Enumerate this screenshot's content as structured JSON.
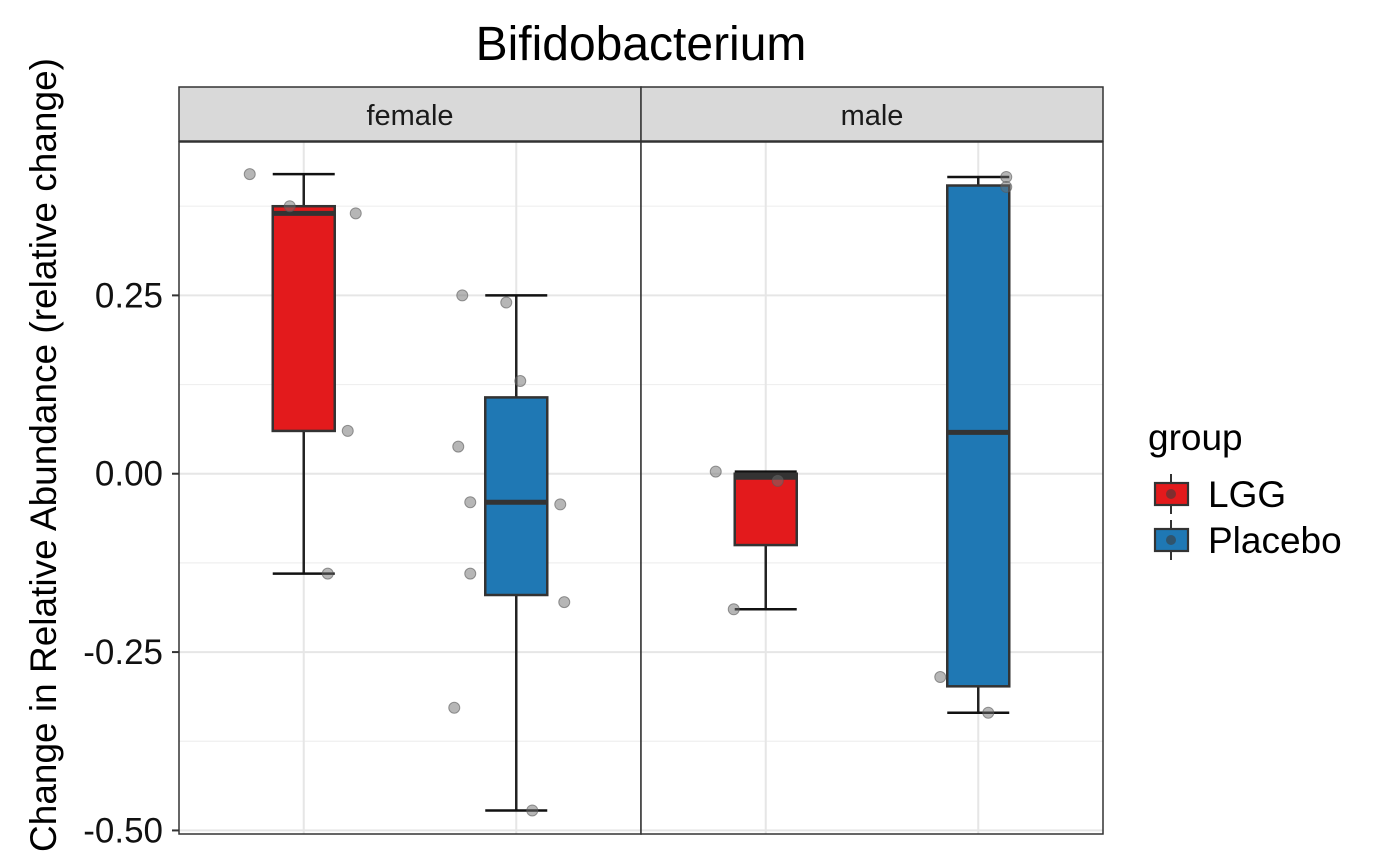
{
  "chart_data": {
    "type": "boxplot",
    "title": "Bifidobacterium",
    "ylabel": "Change in Relative Abundance (relative change)",
    "xlabel": "",
    "ylim": [
      -0.505,
      0.465
    ],
    "yticks": [
      0.25,
      0.0,
      -0.25,
      -0.5
    ],
    "ytick_labels": [
      "0.25",
      "0.00",
      "-0.25",
      "-0.50"
    ],
    "grid": true,
    "legend": {
      "title": "group",
      "position": "right",
      "entries": [
        {
          "name": "LGG",
          "color": "#E31A1C"
        },
        {
          "name": "Placebo",
          "color": "#1F78B4"
        }
      ]
    },
    "panels": [
      {
        "label": "female",
        "boxes": [
          {
            "group": "LGG",
            "whisker_low": -0.14,
            "q1": 0.06,
            "median": 0.365,
            "q3": 0.375,
            "whisker_high": 0.42,
            "points": [
              0.42,
              0.375,
              0.365,
              0.06,
              -0.14
            ]
          },
          {
            "group": "Placebo",
            "whisker_low": -0.472,
            "q1": -0.17,
            "median": -0.04,
            "q3": 0.107,
            "whisker_high": 0.25,
            "points": [
              0.25,
              0.24,
              0.13,
              0.038,
              -0.04,
              -0.043,
              -0.14,
              -0.18,
              -0.328,
              -0.472
            ]
          }
        ]
      },
      {
        "label": "male",
        "boxes": [
          {
            "group": "LGG",
            "whisker_low": -0.19,
            "q1": -0.1,
            "median": -0.005,
            "q3": 0.0,
            "whisker_high": 0.003,
            "points": [
              0.003,
              -0.01,
              -0.19
            ]
          },
          {
            "group": "Placebo",
            "whisker_low": -0.335,
            "q1": -0.298,
            "median": 0.058,
            "q3": 0.404,
            "whisker_high": 0.416,
            "points": [
              0.416,
              0.402,
              -0.285,
              -0.335
            ]
          }
        ]
      }
    ]
  }
}
